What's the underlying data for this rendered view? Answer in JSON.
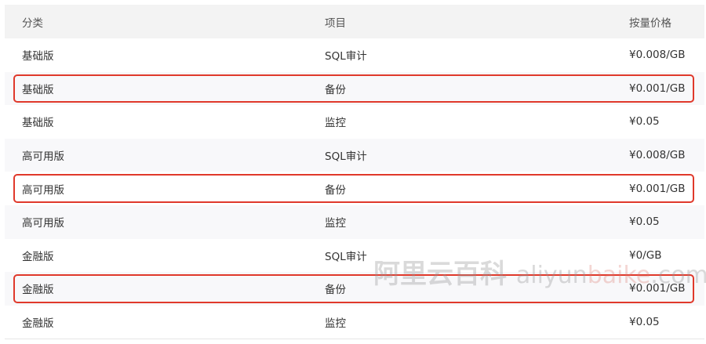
{
  "headers": [
    "分类",
    "项目",
    "按量价格"
  ],
  "rows": [
    {
      "category": "基础版",
      "item": "SQL审计",
      "price": "¥0.008/GB",
      "highlighted": false
    },
    {
      "category": "基础版",
      "item": "备份",
      "price": "¥0.001/GB",
      "highlighted": true
    },
    {
      "category": "基础版",
      "item": "监控",
      "price": "¥0.05",
      "highlighted": false
    },
    {
      "category": "高可用版",
      "item": "SQL审计",
      "price": "¥0.008/GB",
      "highlighted": false
    },
    {
      "category": "高可用版",
      "item": "备份",
      "price": "¥0.001/GB",
      "highlighted": true
    },
    {
      "category": "高可用版",
      "item": "监控",
      "price": "¥0.05",
      "highlighted": false
    },
    {
      "category": "金融版",
      "item": "SQL审计",
      "price": "¥0/GB",
      "highlighted": false
    },
    {
      "category": "金融版",
      "item": "备份",
      "price": "¥0.001/GB",
      "highlighted": true
    },
    {
      "category": "金融版",
      "item": "监控",
      "price": "¥0.05",
      "highlighted": false
    }
  ],
  "highlight_color": "#e0392b",
  "watermark": {
    "cn": "阿里云百科",
    "en1": "aliyun",
    "en2": "baike",
    "en3": ".com"
  }
}
